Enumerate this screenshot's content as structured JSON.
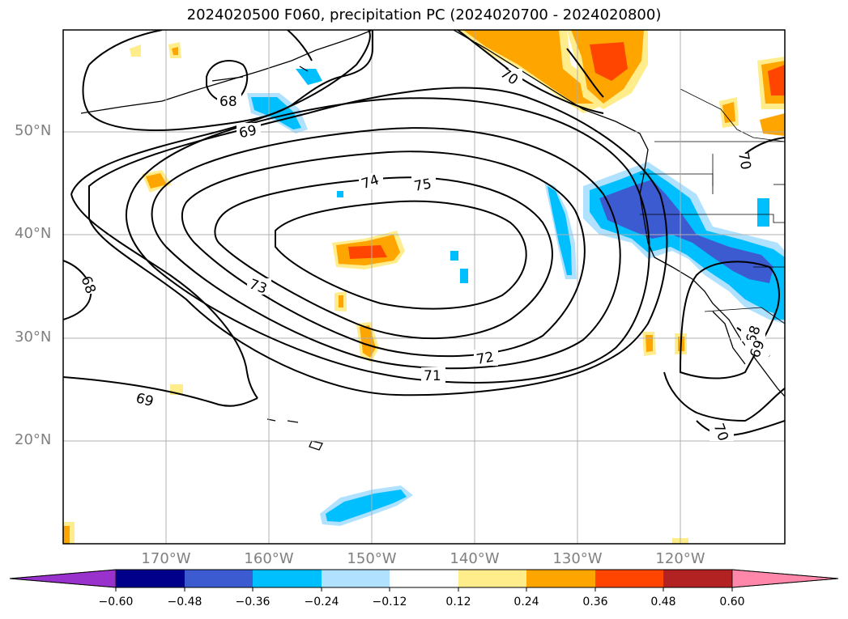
{
  "title": "2024020500 F060, precipitation PC (2024020700 - 2024020800)",
  "latitude_labels": [
    "50°N",
    "40°N",
    "30°N",
    "20°N"
  ],
  "longitude_labels": [
    "170°W",
    "160°W",
    "150°W",
    "140°W",
    "130°W",
    "120°W"
  ],
  "contour_labels": [
    "68",
    "69",
    "70",
    "71",
    "72",
    "73",
    "74",
    "75",
    "68",
    "69",
    "70",
    "70",
    "68",
    "69"
  ],
  "colorbar": {
    "tick_labels": [
      "−0.60",
      "−0.48",
      "−0.36",
      "−0.24",
      "−0.12",
      "0.12",
      "0.24",
      "0.36",
      "0.48",
      "0.60"
    ],
    "colors": [
      "#9932cc",
      "#00008b",
      "#3d5bd1",
      "#00bfff",
      "#b0e2ff",
      "#ffffff",
      "#ffec8b",
      "#ffa500",
      "#ff4500",
      "#b22222",
      "#ff88aa"
    ]
  }
}
